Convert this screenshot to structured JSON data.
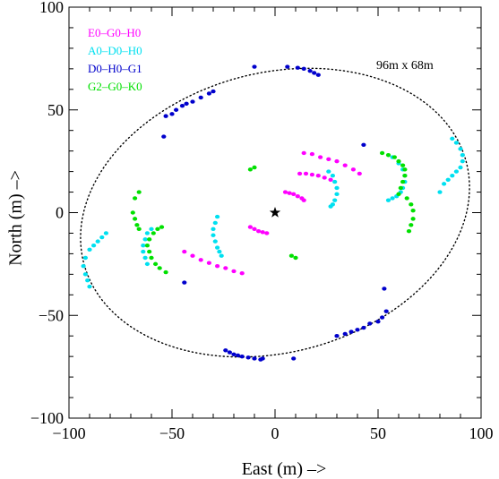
{
  "chart_data": {
    "type": "scatter",
    "title": "",
    "xlabel": "East  (m) –>",
    "ylabel": "North  (m) –>",
    "xlim": [
      -100,
      100
    ],
    "ylim": [
      -100,
      100
    ],
    "xticks": [
      -100,
      -50,
      0,
      50,
      100
    ],
    "yticks": [
      -100,
      -50,
      0,
      50,
      100
    ],
    "xtick_labels": [
      "−100",
      "−50",
      "0",
      "50",
      "100"
    ],
    "ytick_labels": [
      "−100",
      "−50",
      "0",
      "50",
      "100"
    ],
    "grid": false,
    "legend_position": "top-left",
    "center_marker": {
      "symbol": "star",
      "x": 0,
      "y": 0
    },
    "ellipse": {
      "label": "96m x 68m",
      "cx": 0,
      "cy": 0,
      "a": 96,
      "b": 68,
      "angle_deg": 15,
      "style": "dotted"
    },
    "series": [
      {
        "name": "E0–G0–H0",
        "color": "#ff00ff",
        "x": [
          5,
          7,
          9,
          11,
          13,
          14,
          -12,
          -10,
          -8,
          -6,
          -4,
          12,
          15,
          18,
          21,
          24,
          27,
          14,
          18,
          22,
          26,
          30,
          34,
          38,
          41,
          -44,
          -40,
          -36,
          -32,
          -28,
          -24,
          -20,
          -16
        ],
        "y": [
          10,
          9.5,
          9,
          8,
          7,
          6,
          -7,
          -8,
          -9,
          -9.5,
          -10,
          19,
          19,
          18.5,
          18,
          17,
          16,
          29,
          28.5,
          27,
          26,
          25,
          23,
          21,
          19,
          -19,
          -21,
          -23,
          -24.5,
          -26,
          -27,
          -28.5,
          -29.5
        ]
      },
      {
        "name": "A0–D0–H0",
        "color": "#00e0f0",
        "x": [
          26,
          28,
          29,
          30,
          30,
          29,
          28,
          27,
          -28,
          -29,
          -30,
          -30,
          -29,
          -28,
          -27,
          -26,
          57,
          60,
          62,
          63,
          63,
          62,
          61,
          59,
          57,
          55,
          86,
          88,
          90,
          91,
          91,
          90,
          88,
          86,
          84,
          82,
          80,
          -60,
          -62,
          -63,
          -64,
          -64,
          -63,
          -62,
          -82,
          -84,
          -86,
          -88,
          -90,
          -92,
          -93,
          -92,
          -91,
          -90
        ],
        "y": [
          20,
          18,
          15,
          12,
          9,
          6,
          4,
          3,
          -2,
          -5,
          -8,
          -11,
          -14,
          -17,
          -19,
          -21,
          27,
          24,
          21,
          18,
          15,
          12,
          10,
          8,
          7,
          6,
          36,
          34,
          31,
          28,
          25,
          22,
          20,
          18,
          16,
          14,
          10,
          -8,
          -10,
          -13,
          -16,
          -19,
          -22,
          -25,
          -10,
          -12,
          -14,
          -16,
          -18,
          -22,
          -26,
          -30,
          -33,
          -36
        ]
      },
      {
        "name": "D0–H0–G1",
        "color": "#0000cc",
        "x": [
          -10,
          6,
          11,
          14,
          17,
          19,
          21,
          -30,
          -32,
          -36,
          -40,
          -43,
          -45,
          -48,
          -50,
          -53,
          -54,
          43,
          53,
          54,
          52,
          50,
          46,
          43,
          40,
          37,
          34,
          30,
          -24,
          -22,
          -20,
          -18,
          -16,
          -13,
          -10,
          -7,
          -6,
          9,
          -44
        ],
        "y": [
          71,
          71,
          70.5,
          70,
          69,
          68,
          67,
          59,
          58,
          56,
          54,
          53,
          52,
          50,
          48,
          47,
          37,
          33,
          -37,
          -48,
          -51,
          -53,
          -54,
          -56,
          -57,
          -58,
          -59,
          -60,
          -67,
          -68,
          -69,
          -69.5,
          -70,
          -70.5,
          -71,
          -71.5,
          -71,
          -71,
          -34
        ]
      },
      {
        "name": "G2–G0–K0",
        "color": "#00e000",
        "x": [
          -66,
          -68,
          -69,
          -68,
          -67,
          -66,
          -53,
          -56,
          -58,
          -60,
          -61,
          -62,
          -61,
          -59,
          -57,
          -55,
          -12,
          -10,
          8,
          10,
          52,
          55,
          58,
          60,
          62,
          63,
          63,
          62,
          61,
          60,
          64,
          66,
          67,
          67,
          66,
          65
        ],
        "y": [
          10,
          7,
          0,
          -3,
          -6,
          -8,
          -29,
          -27,
          -25,
          -22,
          -19,
          -16,
          -13,
          -10,
          -8,
          -7,
          21,
          22,
          -21,
          -22,
          29,
          28,
          27,
          25,
          23,
          21,
          18,
          15,
          12,
          9,
          7,
          4,
          1,
          -3,
          -6,
          -9
        ]
      }
    ]
  }
}
